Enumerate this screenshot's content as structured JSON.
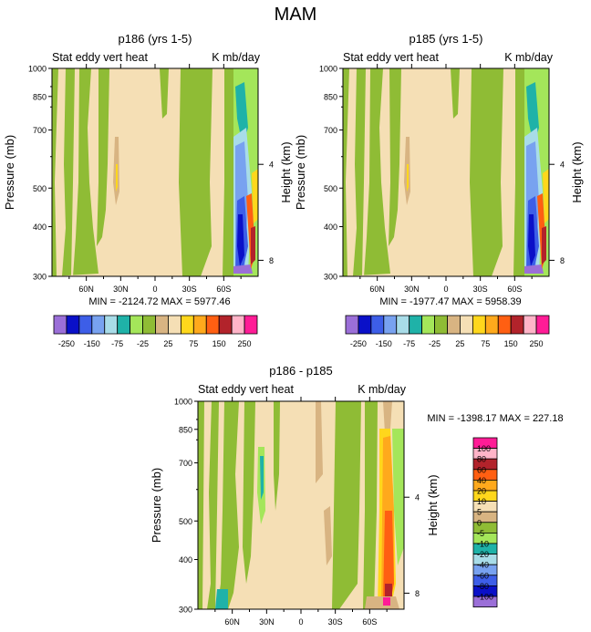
{
  "main_title": "MAM",
  "palette": [
    "#9b6fd8",
    "#0a10c8",
    "#3d5ee8",
    "#78a2f0",
    "#a8dce8",
    "#1fb2a8",
    "#a4e65a",
    "#8fbc35",
    "#d8b482",
    "#f5dfb5",
    "#ffd71c",
    "#ffa91c",
    "#ff5f12",
    "#b2232b",
    "#ffb4c8",
    "#ff1c96"
  ],
  "panels": [
    {
      "id": "p186",
      "title": "p186 (yrs 1-5)",
      "left_label": "Stat eddy vert heat",
      "right_label": "K mb/day",
      "minmax": "MIN = -2124.72   MAX = 5977.46"
    },
    {
      "id": "p185",
      "title": "p185 (yrs 1-5)",
      "left_label": "Stat eddy vert heat",
      "right_label": "K mb/day",
      "minmax": "MIN = -1977.47   MAX = 5958.39"
    },
    {
      "id": "diff",
      "title": "p186 - p185",
      "left_label": "Stat eddy vert heat",
      "right_label": "K mb/day",
      "minmax": "MIN = -1398.17   MAX = 227.18"
    }
  ],
  "axes": {
    "ylabel_left": "Pressure (mb)",
    "ylabel_right": "Height (km)",
    "pressure_ticks": [
      "300",
      "400",
      "500",
      "700",
      "850",
      "1000"
    ],
    "height_ticks": [
      "8",
      "4"
    ],
    "lat_ticks": [
      "60N",
      "30N",
      "0",
      "30S",
      "60S"
    ]
  },
  "colorbar_top": {
    "labels": [
      "-250",
      "-150",
      "-75",
      "-25",
      "25",
      "75",
      "150",
      "250"
    ]
  },
  "colorbar_diff": {
    "labels": [
      "100",
      "80",
      "60",
      "40",
      "20",
      "10",
      "5",
      "0",
      "-5",
      "-10",
      "-20",
      "-40",
      "-60",
      "-80",
      "-100"
    ]
  },
  "chart_data": [
    {
      "type": "heatmap",
      "title": "p186 (yrs 1-5)",
      "field": "Stat eddy vert heat",
      "units": "K mb/day",
      "x": "latitude (90N to 90S)",
      "y": "pressure (mb)",
      "ylim": [
        1000,
        300
      ],
      "min": -2124.72,
      "max": 5977.46,
      "levels": [
        -250,
        -200,
        -150,
        -100,
        -75,
        -50,
        -25,
        -10,
        10,
        25,
        50,
        75,
        100,
        150,
        200,
        250
      ]
    },
    {
      "type": "heatmap",
      "title": "p185 (yrs 1-5)",
      "field": "Stat eddy vert heat",
      "units": "K mb/day",
      "x": "latitude (90N to 90S)",
      "y": "pressure (mb)",
      "ylim": [
        1000,
        300
      ],
      "min": -1977.47,
      "max": 5958.39,
      "levels": [
        -250,
        -200,
        -150,
        -100,
        -75,
        -50,
        -25,
        -10,
        10,
        25,
        50,
        75,
        100,
        150,
        200,
        250
      ]
    },
    {
      "type": "heatmap",
      "title": "p186 - p185",
      "field": "Stat eddy vert heat",
      "units": "K mb/day",
      "x": "latitude (90N to 90S)",
      "y": "pressure (mb)",
      "ylim": [
        1000,
        300
      ],
      "min": -1398.17,
      "max": 227.18,
      "levels": [
        -100,
        -80,
        -60,
        -40,
        -20,
        -10,
        -5,
        0,
        5,
        10,
        20,
        40,
        60,
        80,
        100
      ]
    }
  ]
}
